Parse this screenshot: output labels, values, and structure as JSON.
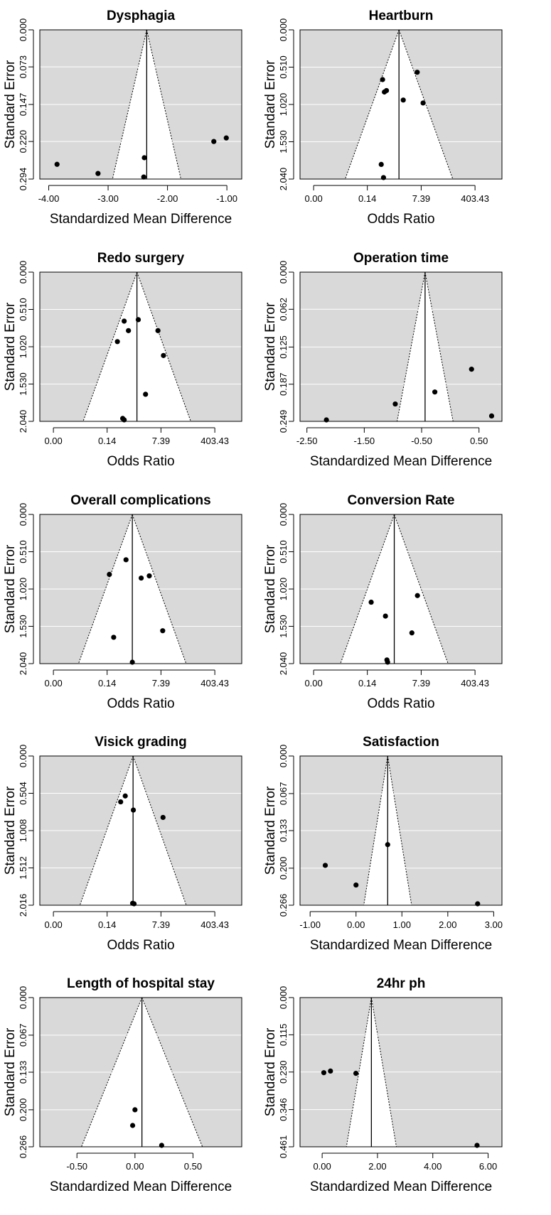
{
  "chart_data": [
    {
      "type": "scatter",
      "title": "Dysphagia",
      "xlabel": "Standardized Mean Difference",
      "ylabel": "Standard Error",
      "xscale": "linear",
      "xlim": [
        -4.15,
        -0.75
      ],
      "xticks": [
        -4.0,
        -3.0,
        -2.0,
        -1.0
      ],
      "xtick_labels": [
        "-4.00",
        "-3.00",
        "-2.00",
        "-1.00"
      ],
      "ylim": [
        0.294,
        0.0
      ],
      "yticks": [
        0.0,
        0.073,
        0.147,
        0.22,
        0.294
      ],
      "ytick_labels": [
        "0.000",
        "0.073",
        "0.147",
        "0.220",
        "0.294"
      ],
      "pooled_estimate": -2.35,
      "points": [
        {
          "x": -3.86,
          "y": 0.265
        },
        {
          "x": -3.17,
          "y": 0.283
        },
        {
          "x": -2.39,
          "y": 0.252
        },
        {
          "x": -2.4,
          "y": 0.29
        },
        {
          "x": -1.22,
          "y": 0.22
        },
        {
          "x": -1.01,
          "y": 0.213
        }
      ]
    },
    {
      "type": "scatter",
      "title": "Heartburn",
      "xlabel": "Odds Ratio",
      "ylabel": "Standard Error",
      "xscale": "log",
      "xlim": [
        0.000911,
        2981
      ],
      "xticks": [
        0.0025,
        0.1353,
        7.389,
        403.43
      ],
      "xtick_labels": [
        "0.00",
        "0.14",
        "7.39",
        "403.43"
      ],
      "ylim": [
        2.04,
        0.0
      ],
      "yticks": [
        0.0,
        0.51,
        1.02,
        1.53,
        2.04
      ],
      "ytick_labels": [
        "0.000",
        "0.510",
        "1.020",
        "1.530",
        "2.040"
      ],
      "pooled_estimate": 1.42,
      "points": [
        {
          "x": 0.42,
          "y": 0.68
        },
        {
          "x": 0.48,
          "y": 0.85
        },
        {
          "x": 0.56,
          "y": 0.83
        },
        {
          "x": 1.95,
          "y": 0.96
        },
        {
          "x": 5.5,
          "y": 0.58
        },
        {
          "x": 8.5,
          "y": 1.0
        },
        {
          "x": 0.38,
          "y": 1.84
        },
        {
          "x": 0.45,
          "y": 2.02
        }
      ]
    },
    {
      "type": "scatter",
      "title": "Redo surgery",
      "xlabel": "Odds Ratio",
      "ylabel": "Standard Error",
      "xscale": "log",
      "xlim": [
        0.000911,
        2981
      ],
      "xticks": [
        0.0025,
        0.1353,
        7.389,
        403.43
      ],
      "xtick_labels": [
        "0.00",
        "0.14",
        "7.39",
        "403.43"
      ],
      "ylim": [
        2.04,
        0.0
      ],
      "yticks": [
        0.0,
        0.51,
        1.02,
        1.53,
        2.04
      ],
      "ytick_labels": [
        "0.000",
        "0.510",
        "1.020",
        "1.530",
        "2.040"
      ],
      "pooled_estimate": 1.24,
      "points": [
        {
          "x": 0.48,
          "y": 0.67
        },
        {
          "x": 1.37,
          "y": 0.65
        },
        {
          "x": 0.66,
          "y": 0.8
        },
        {
          "x": 0.29,
          "y": 0.95
        },
        {
          "x": 5.9,
          "y": 0.8
        },
        {
          "x": 8.9,
          "y": 1.14
        },
        {
          "x": 2.35,
          "y": 1.67
        },
        {
          "x": 0.48,
          "y": 2.02
        },
        {
          "x": 0.43,
          "y": 2.0
        }
      ]
    },
    {
      "type": "scatter",
      "title": "Operation time",
      "xlabel": "Standardized Mean Difference",
      "ylabel": "Standard Error",
      "xscale": "linear",
      "xlim": [
        -2.62,
        0.9
      ],
      "xticks": [
        -2.5,
        -1.5,
        -0.5,
        0.5
      ],
      "xtick_labels": [
        "-2.50",
        "-1.50",
        "-0.50",
        "0.50"
      ],
      "ylim": [
        0.249,
        0.0
      ],
      "yticks": [
        0.0,
        0.062,
        0.125,
        0.187,
        0.249
      ],
      "ytick_labels": [
        "0.000",
        "0.062",
        "0.125",
        "0.187",
        "0.249"
      ],
      "pooled_estimate": -0.44,
      "points": [
        {
          "x": -2.16,
          "y": 0.249
        },
        {
          "x": -0.96,
          "y": 0.22
        },
        {
          "x": -0.27,
          "y": 0.2
        },
        {
          "x": 0.37,
          "y": 0.162
        },
        {
          "x": 0.72,
          "y": 0.24
        }
      ]
    },
    {
      "type": "scatter",
      "title": "Overall complications",
      "xlabel": "Odds Ratio",
      "ylabel": "Standard Error",
      "xscale": "log",
      "xlim": [
        0.000911,
        2981
      ],
      "xticks": [
        0.0025,
        0.1353,
        7.389,
        403.43
      ],
      "xtick_labels": [
        "0.00",
        "0.14",
        "7.39",
        "403.43"
      ],
      "ylim": [
        2.04,
        0.0
      ],
      "yticks": [
        0.0,
        0.51,
        1.02,
        1.53,
        2.04
      ],
      "ytick_labels": [
        "0.000",
        "0.510",
        "1.020",
        "1.530",
        "2.040"
      ],
      "pooled_estimate": 0.88,
      "points": [
        {
          "x": 0.16,
          "y": 0.82
        },
        {
          "x": 0.55,
          "y": 0.62
        },
        {
          "x": 1.7,
          "y": 0.87
        },
        {
          "x": 3.1,
          "y": 0.84
        },
        {
          "x": 0.22,
          "y": 1.68
        },
        {
          "x": 8.4,
          "y": 1.59
        },
        {
          "x": 0.88,
          "y": 2.03
        }
      ]
    },
    {
      "type": "scatter",
      "title": "Conversion Rate",
      "xlabel": "Odds Ratio",
      "ylabel": "Standard Error",
      "xscale": "log",
      "xlim": [
        0.000911,
        2981
      ],
      "xticks": [
        0.0025,
        0.1353,
        7.389,
        403.43
      ],
      "xtick_labels": [
        "0.00",
        "0.14",
        "7.39",
        "403.43"
      ],
      "ylim": [
        2.04,
        0.0
      ],
      "yticks": [
        0.0,
        0.51,
        1.02,
        1.53,
        2.04
      ],
      "ytick_labels": [
        "0.000",
        "0.510",
        "1.020",
        "1.530",
        "2.040"
      ],
      "pooled_estimate": 1.0,
      "points": [
        {
          "x": 0.18,
          "y": 1.2
        },
        {
          "x": 0.52,
          "y": 1.39
        },
        {
          "x": 5.6,
          "y": 1.11
        },
        {
          "x": 3.7,
          "y": 1.62
        },
        {
          "x": 0.58,
          "y": 1.99
        },
        {
          "x": 0.61,
          "y": 2.02
        }
      ]
    },
    {
      "type": "scatter",
      "title": "Visick grading",
      "xlabel": "Odds Ratio",
      "ylabel": "Standard Error",
      "xscale": "log",
      "xlim": [
        0.000911,
        2981
      ],
      "xticks": [
        0.0025,
        0.1353,
        7.389,
        403.43
      ],
      "xtick_labels": [
        "0.00",
        "0.14",
        "7.39",
        "403.43"
      ],
      "ylim": [
        2.016,
        0.0
      ],
      "yticks": [
        0.0,
        0.504,
        1.008,
        1.512,
        2.016
      ],
      "ytick_labels": [
        "0.000",
        "0.504",
        "1.008",
        "1.512",
        "2.016"
      ],
      "pooled_estimate": 0.93,
      "points": [
        {
          "x": 0.52,
          "y": 0.54
        },
        {
          "x": 0.37,
          "y": 0.62
        },
        {
          "x": 0.95,
          "y": 0.73
        },
        {
          "x": 8.6,
          "y": 0.83
        },
        {
          "x": 0.9,
          "y": 1.99
        },
        {
          "x": 1.0,
          "y": 2.0
        }
      ]
    },
    {
      "type": "scatter",
      "title": "Satisfaction",
      "xlabel": "Standardized Mean Difference",
      "ylabel": "Standard Error",
      "xscale": "linear",
      "xlim": [
        -1.22,
        3.18
      ],
      "xticks": [
        -1.0,
        0.0,
        1.0,
        2.0,
        3.0
      ],
      "xtick_labels": [
        "-1.00",
        "0.00",
        "1.00",
        "2.00",
        "3.00"
      ],
      "ylim": [
        0.266,
        0.0
      ],
      "yticks": [
        0.0,
        0.067,
        0.133,
        0.2,
        0.266
      ],
      "ytick_labels": [
        "0.000",
        "0.067",
        "0.133",
        "0.200",
        "0.266"
      ],
      "pooled_estimate": 0.69,
      "points": [
        {
          "x": -0.67,
          "y": 0.195
        },
        {
          "x": 0.0,
          "y": 0.23
        },
        {
          "x": 0.69,
          "y": 0.158
        },
        {
          "x": 2.65,
          "y": 0.266
        }
      ]
    },
    {
      "type": "scatter",
      "title": "Length of hospital stay",
      "xlabel": "Standardized Mean Difference",
      "ylabel": "Standard Error",
      "xscale": "linear",
      "xlim": [
        -0.82,
        0.92
      ],
      "xticks": [
        -0.5,
        0.0,
        0.5
      ],
      "xtick_labels": [
        "-0.50",
        "0.00",
        "0.50"
      ],
      "ylim": [
        0.266,
        0.0
      ],
      "yticks": [
        0.0,
        0.067,
        0.133,
        0.2,
        0.266
      ],
      "ytick_labels": [
        "0.000",
        "0.067",
        "0.133",
        "0.200",
        "0.266"
      ],
      "pooled_estimate": 0.06,
      "points": [
        {
          "x": 0.0,
          "y": 0.2
        },
        {
          "x": -0.02,
          "y": 0.228
        },
        {
          "x": 0.23,
          "y": 0.266
        }
      ]
    },
    {
      "type": "scatter",
      "title": "24hr ph",
      "xlabel": "Standardized Mean Difference",
      "ylabel": "Standard Error",
      "xscale": "linear",
      "xlim": [
        -0.8,
        6.5
      ],
      "xticks": [
        0.0,
        2.0,
        4.0,
        6.0
      ],
      "xtick_labels": [
        "0.00",
        "2.00",
        "4.00",
        "6.00"
      ],
      "ylim": [
        0.461,
        0.0
      ],
      "yticks": [
        0.0,
        0.115,
        0.23,
        0.346,
        0.461
      ],
      "ytick_labels": [
        "0.000",
        "0.115",
        "0.230",
        "0.346",
        "0.461"
      ],
      "pooled_estimate": 1.78,
      "points": [
        {
          "x": 0.06,
          "y": 0.232
        },
        {
          "x": 0.3,
          "y": 0.227
        },
        {
          "x": 1.22,
          "y": 0.234
        },
        {
          "x": 5.6,
          "y": 0.461
        }
      ]
    }
  ]
}
